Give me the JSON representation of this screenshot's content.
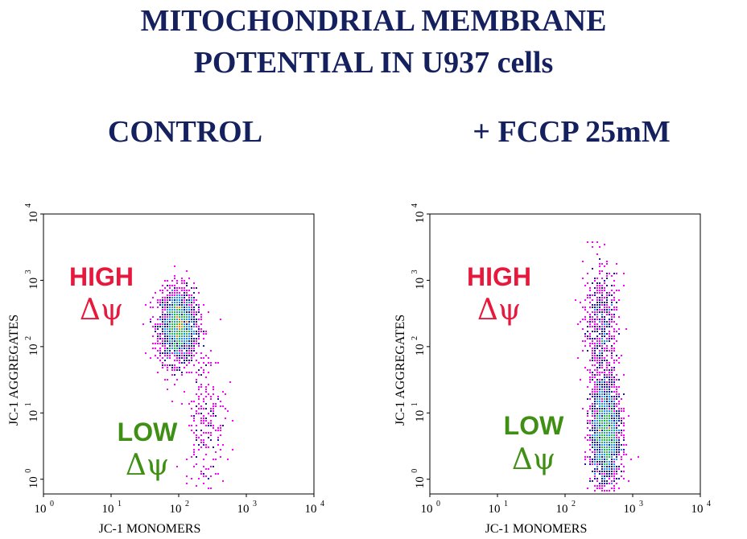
{
  "title_line1": "MITOCHONDRIAL MEMBRANE",
  "title_line2": "POTENTIAL IN U937 cells",
  "colors": {
    "title": "#15205e",
    "high_label": "#e8183c",
    "low_label": "#3f8f14",
    "density_low": "#ff00ff",
    "density_mid": "#1a1aa0",
    "density_midhigh": "#2090ff",
    "density_high": "#20c040",
    "density_peak": "#ff8000"
  },
  "chart_data": [
    {
      "type": "scatter",
      "panel_title": "CONTROL",
      "xlabel": "JC-1 MONOMERS",
      "ylabel": "JC-1 AGGREGATES",
      "x_scale": "log",
      "y_scale": "log",
      "xlim": [
        1,
        10000
      ],
      "ylim": [
        0.6,
        10000
      ],
      "x_ticks": [
        {
          "base": "10",
          "exp": "0"
        },
        {
          "base": "10",
          "exp": "1"
        },
        {
          "base": "10",
          "exp": "2"
        },
        {
          "base": "10",
          "exp": "3"
        },
        {
          "base": "10",
          "exp": "4"
        }
      ],
      "y_ticks": [
        {
          "base": "10",
          "exp": "0"
        },
        {
          "base": "10",
          "exp": "1"
        },
        {
          "base": "10",
          "exp": "2"
        },
        {
          "base": "10",
          "exp": "3"
        },
        {
          "base": "10",
          "exp": "4"
        }
      ],
      "annotations": [
        {
          "text": "HIGH",
          "region": "high"
        },
        {
          "text": "Δψ",
          "region": "high"
        },
        {
          "text": "LOW",
          "region": "low"
        },
        {
          "text": "Δψ",
          "region": "low"
        }
      ],
      "populations": [
        {
          "description": "main population",
          "center_x": 100,
          "center_y": 200,
          "spread_log_x": 0.14,
          "spread_log_y": 0.28,
          "count": 1800
        },
        {
          "description": "tail",
          "center_x": 250,
          "center_y": 8,
          "spread_log_x": 0.15,
          "spread_log_y": 0.55,
          "count": 240
        }
      ]
    },
    {
      "type": "scatter",
      "panel_title": "+ FCCP 25mM",
      "xlabel": "JC-1 MONOMERS",
      "ylabel": "JC-1 AGGREGATES",
      "x_scale": "log",
      "y_scale": "log",
      "xlim": [
        1,
        10000
      ],
      "ylim": [
        0.6,
        10000
      ],
      "x_ticks": [
        {
          "base": "10",
          "exp": "0"
        },
        {
          "base": "10",
          "exp": "1"
        },
        {
          "base": "10",
          "exp": "2"
        },
        {
          "base": "10",
          "exp": "3"
        },
        {
          "base": "10",
          "exp": "4"
        }
      ],
      "y_ticks": [
        {
          "base": "10",
          "exp": "0"
        },
        {
          "base": "10",
          "exp": "1"
        },
        {
          "base": "10",
          "exp": "2"
        },
        {
          "base": "10",
          "exp": "3"
        },
        {
          "base": "10",
          "exp": "4"
        }
      ],
      "annotations": [
        {
          "text": "HIGH",
          "region": "high"
        },
        {
          "text": "Δψ",
          "region": "high"
        },
        {
          "text": "LOW",
          "region": "low"
        },
        {
          "text": "Δψ",
          "region": "low"
        }
      ],
      "populations": [
        {
          "description": "depolarized population",
          "center_x": 400,
          "center_y": 5,
          "spread_log_x": 0.11,
          "spread_log_y": 0.42,
          "count": 2000
        },
        {
          "description": "upper streak",
          "center_x": 350,
          "center_y": 200,
          "spread_log_x": 0.13,
          "spread_log_y": 0.45,
          "count": 600
        }
      ]
    }
  ]
}
